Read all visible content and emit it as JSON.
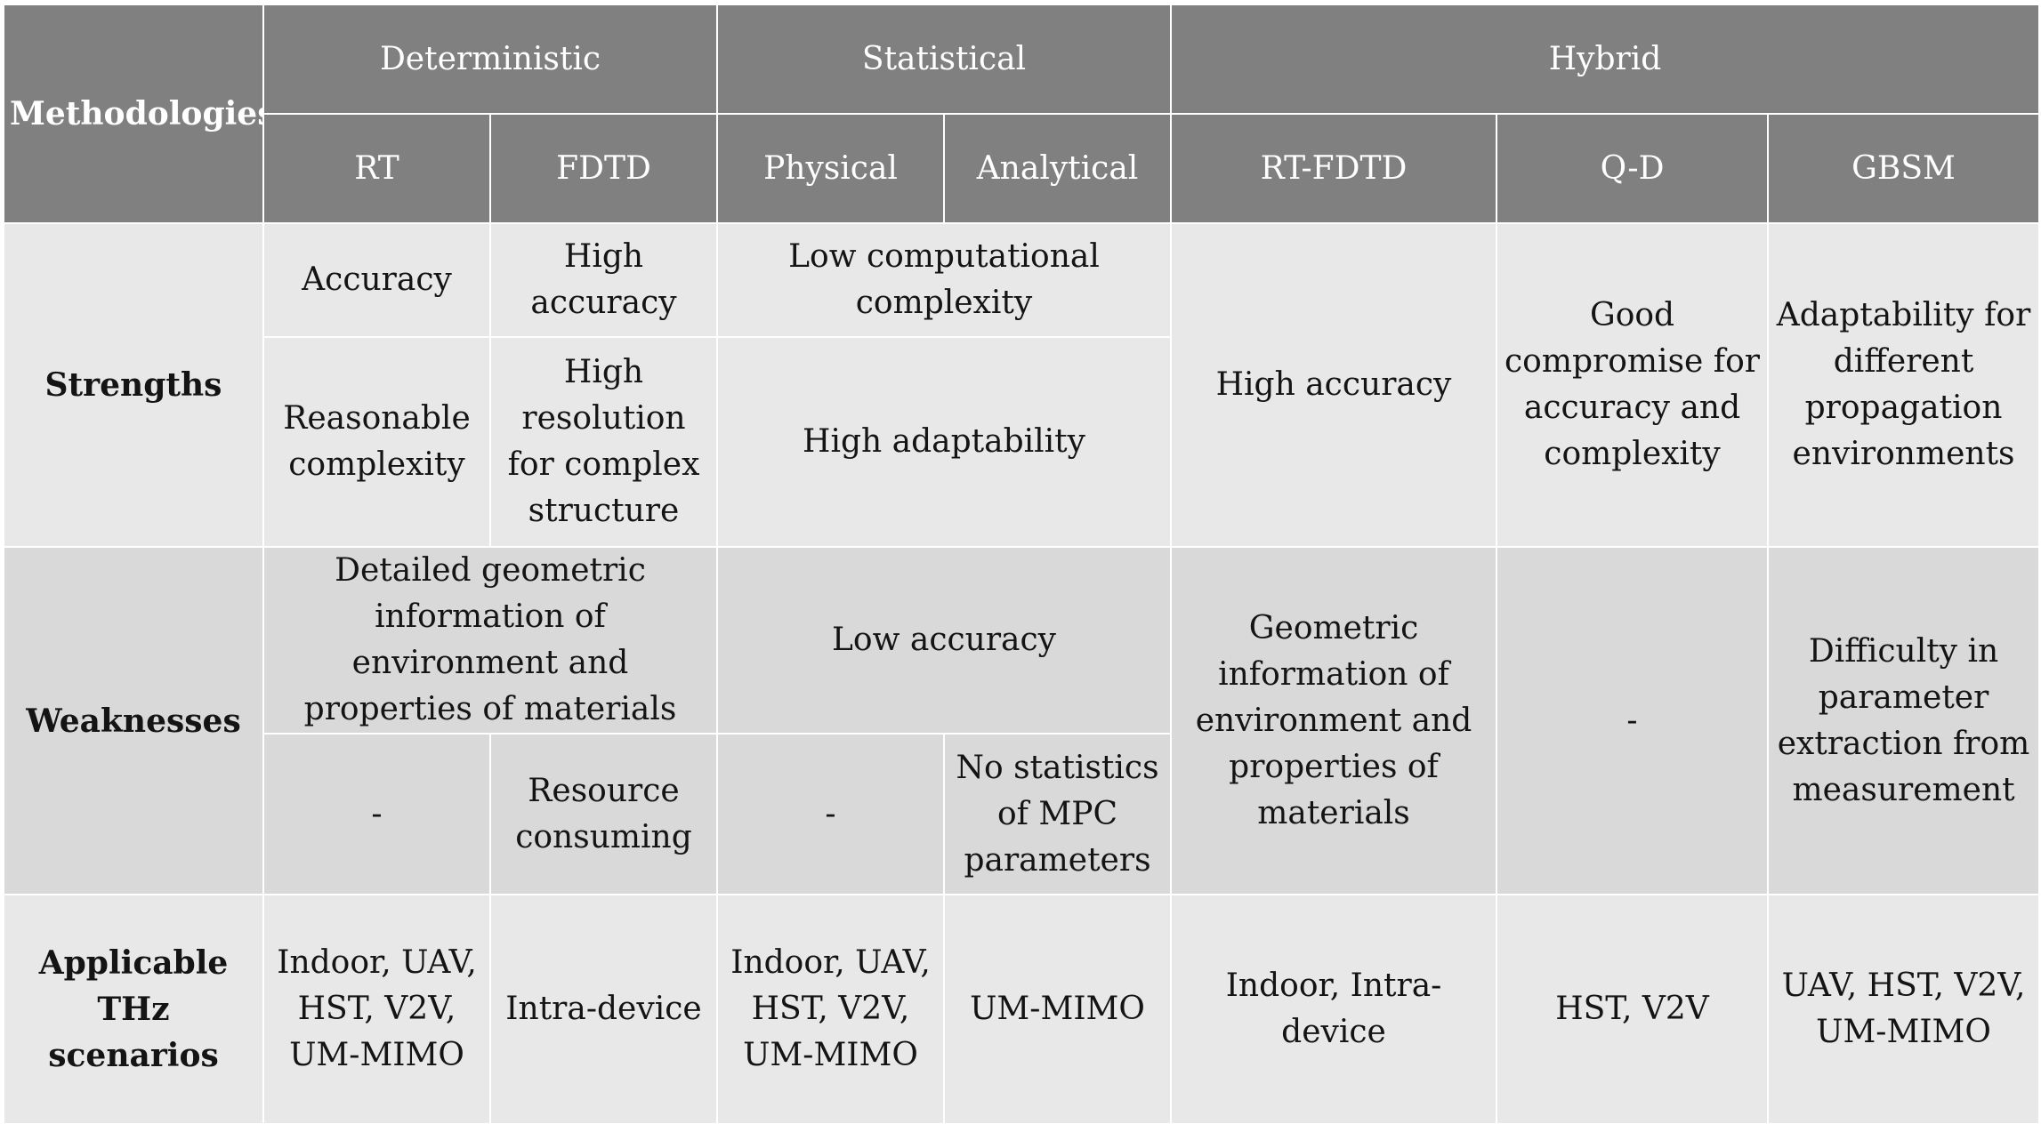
{
  "table": {
    "corner": "Methodologies",
    "groups": {
      "deterministic": "Deterministic",
      "statistical": "Statistical",
      "hybrid": "Hybrid"
    },
    "methods": {
      "rt": "RT",
      "fdtd": "FDTD",
      "physical": "Physical",
      "analytical": "Analytical",
      "rt_fdtd": "RT-FDTD",
      "qd": "Q-D",
      "gbsm": "GBSM"
    },
    "rows": {
      "strengths": "Strengths",
      "weaknesses": "Weaknesses",
      "scenarios": "Applicable THz scenarios"
    },
    "strengths": {
      "rt_1": "Accuracy",
      "fdtd_1": "High accuracy",
      "stat_1": "Low computational complexity",
      "rt_2": "Reasonable complexity",
      "fdtd_2": "High resolution for complex structure",
      "stat_2": "High adaptability",
      "rt_fdtd": "High accuracy",
      "qd": "Good compromise for accuracy and complexity",
      "gbsm": "Adaptability for different propagation environments"
    },
    "weaknesses": {
      "det_1": "Detailed geometric information of environment and properties of materials",
      "stat_1": "Low accuracy",
      "rt_2": "-",
      "fdtd_2": "Resource consuming",
      "physical_2": "-",
      "analytical_2": "No statistics of MPC parameters",
      "rt_fdtd": "Geometric information of environment and properties of materials",
      "qd": "-",
      "gbsm": "Difficulty in parameter extraction from measurement"
    },
    "scenarios": {
      "rt": "Indoor, UAV, HST, V2V, UM-MIMO",
      "fdtd": "Intra-device",
      "physical": "Indoor, UAV, HST, V2V, UM-MIMO",
      "analytical": "UM-MIMO",
      "rt_fdtd": "Indoor, Intra-device",
      "qd": "HST, V2V",
      "gbsm": "UAV, HST, V2V, UM-MIMO"
    }
  }
}
